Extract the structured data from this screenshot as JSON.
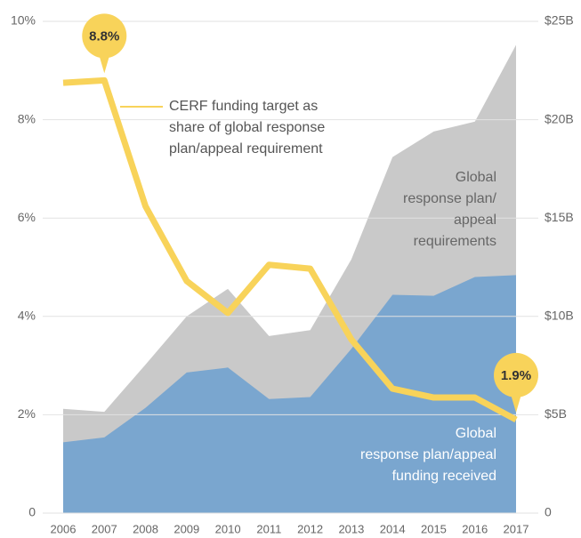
{
  "chart_data": {
    "type": "area-line",
    "categories": [
      "2006",
      "2007",
      "2008",
      "2009",
      "2010",
      "2011",
      "2012",
      "2013",
      "2014",
      "2015",
      "2016",
      "2017"
    ],
    "ylim": [
      0,
      10
    ],
    "yticks": [
      0,
      {
        "value": 2,
        "label": "2%"
      },
      {
        "value": 4,
        "label": "4%"
      },
      {
        "value": 6,
        "label": "6%"
      },
      {
        "value": 8,
        "label": "8%"
      },
      {
        "value": 10,
        "label": "10%"
      }
    ],
    "y2lim": [
      0,
      25
    ],
    "y2ticks": [
      0,
      {
        "value": 5,
        "label": "$5B"
      },
      {
        "value": 10,
        "label": "$10B"
      },
      {
        "value": 15,
        "label": "$15B"
      },
      {
        "value": 20,
        "label": "$20B"
      },
      {
        "value": 25,
        "label": "$25B"
      }
    ],
    "grid": true,
    "series": [
      {
        "kind": "area",
        "axis": "y2",
        "color": "#c9c9c9",
        "label_lines": [
          "Global",
          "response plan/",
          "appeal",
          "requirements"
        ],
        "values": [
          5.3,
          5.15,
          7.55,
          10.0,
          11.4,
          9.0,
          9.3,
          12.9,
          18.1,
          19.4,
          19.9,
          23.8
        ]
      },
      {
        "kind": "area",
        "axis": "y2",
        "color": "#7aa6cf",
        "label_lines": [
          "Global",
          "response plan/appeal",
          "funding received"
        ],
        "values": [
          3.6,
          3.85,
          5.35,
          7.15,
          7.4,
          5.8,
          5.9,
          8.35,
          11.1,
          11.05,
          12.0,
          12.1
        ]
      },
      {
        "kind": "line",
        "axis": "y",
        "color": "#f8d35a",
        "label_lines": [
          "CERF funding target as",
          "share of global response",
          "plan/appeal requirement"
        ],
        "values": [
          8.75,
          8.8,
          6.24,
          4.72,
          4.07,
          5.05,
          4.97,
          3.53,
          2.53,
          2.35,
          2.35,
          1.9
        ],
        "value_labels": [
          null,
          "8.8%",
          null,
          null,
          null,
          null,
          null,
          null,
          null,
          null,
          null,
          "1.9%"
        ]
      }
    ]
  }
}
